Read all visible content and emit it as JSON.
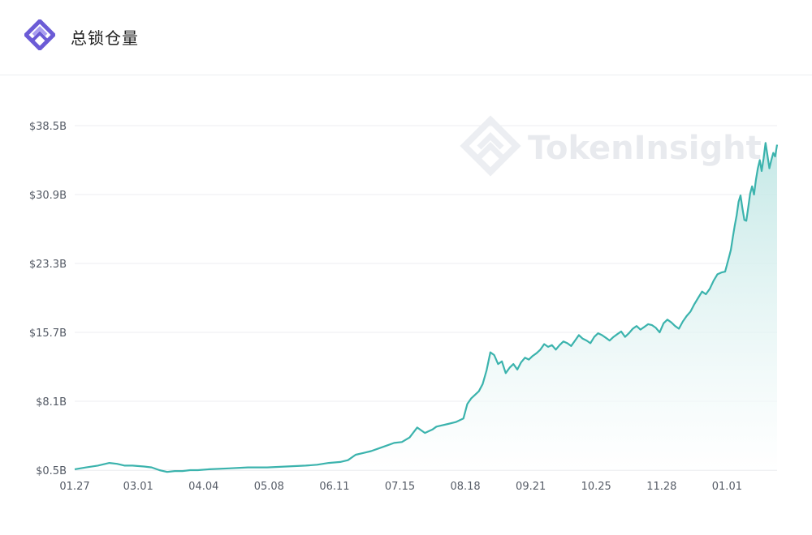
{
  "header": {
    "title": "总锁仓量",
    "logo_icon": "tokeninsight-logo-icon"
  },
  "watermark": {
    "text": "TokenInsight",
    "icon": "tokeninsight-watermark-icon"
  },
  "colors": {
    "line": "#3bb3ad",
    "area_top": "#bfe6e4",
    "area_bottom": "#ffffff",
    "grid": "#eceef1",
    "logo": "#6b5bd6"
  },
  "chart_data": {
    "type": "area",
    "title": "总锁仓量",
    "xlabel": "",
    "ylabel": "",
    "y_ticks": [
      "$0.5B",
      "$8.1B",
      "$15.7B",
      "$23.3B",
      "$30.9B",
      "$38.5B"
    ],
    "y_tick_values": [
      0.5,
      8.1,
      15.7,
      23.3,
      30.9,
      38.5
    ],
    "x_ticks": [
      "01.27",
      "03.01",
      "04.04",
      "05.08",
      "06.11",
      "07.15",
      "08.18",
      "09.21",
      "10.25",
      "11.28",
      "01.01"
    ],
    "x_tick_days": [
      0,
      33,
      67,
      101,
      135,
      169,
      203,
      237,
      271,
      305,
      339
    ],
    "ylim": [
      0.5,
      38.5
    ],
    "xlim_days": [
      0,
      365
    ],
    "grid": true,
    "legend": "none",
    "series": [
      {
        "x_days": [
          0,
          6,
          12,
          18,
          22,
          26,
          30,
          36,
          40,
          44,
          48,
          52,
          56,
          60,
          64,
          70,
          80,
          90,
          100,
          110,
          120,
          126,
          132,
          138,
          142,
          146,
          150,
          154,
          158,
          162,
          166,
          170,
          174,
          178,
          182,
          184,
          186,
          188,
          190,
          194,
          198,
          202,
          204,
          206,
          208,
          210,
          212,
          214,
          216,
          218,
          220,
          222,
          224,
          226,
          228,
          230,
          232,
          234,
          236,
          238,
          240,
          242,
          244,
          246,
          248,
          250,
          252,
          254,
          256,
          258,
          260,
          262,
          264,
          266,
          268,
          270,
          272,
          274,
          276,
          278,
          280,
          282,
          284,
          286,
          288,
          290,
          292,
          294,
          296,
          298,
          300,
          302,
          304,
          306,
          308,
          310,
          312,
          314,
          316,
          318,
          320,
          322,
          324,
          326,
          328,
          330,
          332,
          334,
          336,
          338,
          340,
          341,
          342,
          343,
          344,
          345,
          346,
          347,
          348,
          349,
          350,
          351,
          352,
          353,
          354,
          355,
          356,
          357,
          358,
          359,
          360,
          361,
          362,
          363,
          364,
          365
        ],
        "values": [
          0.6,
          0.8,
          1.0,
          1.3,
          1.2,
          1.0,
          1.0,
          0.9,
          0.8,
          0.5,
          0.3,
          0.4,
          0.4,
          0.5,
          0.5,
          0.6,
          0.7,
          0.8,
          0.8,
          0.9,
          1.0,
          1.1,
          1.3,
          1.4,
          1.6,
          2.2,
          2.4,
          2.6,
          2.9,
          3.2,
          3.5,
          3.6,
          4.1,
          5.2,
          4.6,
          4.8,
          5.0,
          5.3,
          5.4,
          5.6,
          5.8,
          6.2,
          7.8,
          8.4,
          8.8,
          9.2,
          10.0,
          11.5,
          13.5,
          13.2,
          12.2,
          12.5,
          11.2,
          11.8,
          12.2,
          11.6,
          12.4,
          12.9,
          12.7,
          13.1,
          13.4,
          13.8,
          14.4,
          14.1,
          14.3,
          13.8,
          14.3,
          14.7,
          14.5,
          14.2,
          14.8,
          15.4,
          15.0,
          14.8,
          14.5,
          15.2,
          15.6,
          15.4,
          15.1,
          14.8,
          15.2,
          15.5,
          15.8,
          15.2,
          15.6,
          16.1,
          16.4,
          16.0,
          16.3,
          16.6,
          16.5,
          16.2,
          15.7,
          16.7,
          17.1,
          16.8,
          16.4,
          16.1,
          16.9,
          17.5,
          18.0,
          18.8,
          19.5,
          20.2,
          19.9,
          20.5,
          21.4,
          22.1,
          22.3,
          22.4,
          24.0,
          24.8,
          26.2,
          27.5,
          28.6,
          30.1,
          30.8,
          29.4,
          28.1,
          28.0,
          29.5,
          31.0,
          31.8,
          30.9,
          32.5,
          33.8,
          34.7,
          33.5,
          34.9,
          36.6,
          35.2,
          33.8,
          34.7,
          35.5,
          35.1,
          36.4
        ]
      }
    ]
  }
}
